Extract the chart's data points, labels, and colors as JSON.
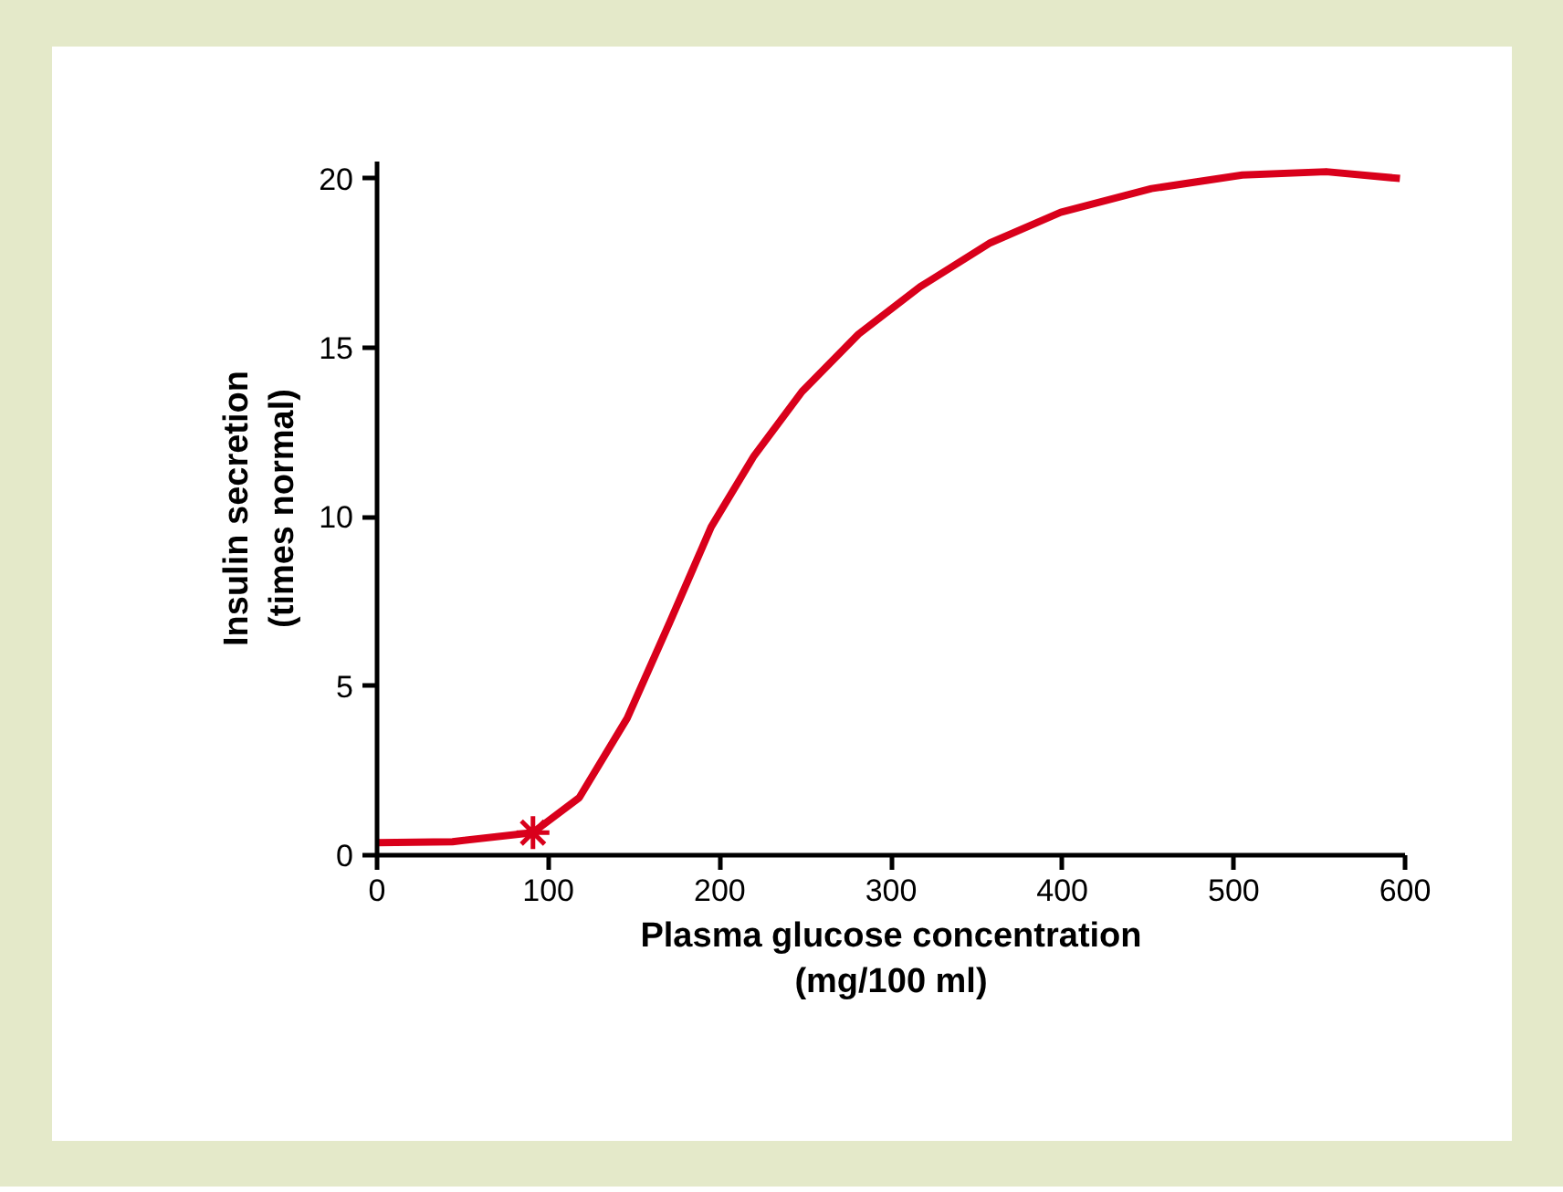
{
  "chart_data": {
    "type": "line",
    "xlabel": "Plasma glucose concentration\n(mg/100 ml)",
    "ylabel": "Insulin secretion\n(times normal)",
    "xlim": [
      0,
      600
    ],
    "ylim": [
      0,
      20.5
    ],
    "xticks": [
      0,
      100,
      200,
      300,
      400,
      500,
      600
    ],
    "yticks": [
      0,
      5,
      10,
      15,
      20
    ],
    "grid": false,
    "series": [
      {
        "color": "#d9001b",
        "marker": "none",
        "line_style": "solid",
        "x": [
          0,
          44,
          91,
          118,
          146,
          171,
          195,
          220,
          248,
          281,
          317,
          358,
          399,
          452,
          505,
          554,
          597
        ],
        "values": [
          0.37,
          0.4,
          0.67,
          1.7,
          4.05,
          6.9,
          9.7,
          11.8,
          13.7,
          15.4,
          16.8,
          18.1,
          19.0,
          19.7,
          20.1,
          20.2,
          20.0
        ]
      },
      {
        "type": "scatter",
        "color": "#d9001b",
        "marker": "cross",
        "x": [
          91
        ],
        "values": [
          0.67
        ]
      }
    ]
  }
}
